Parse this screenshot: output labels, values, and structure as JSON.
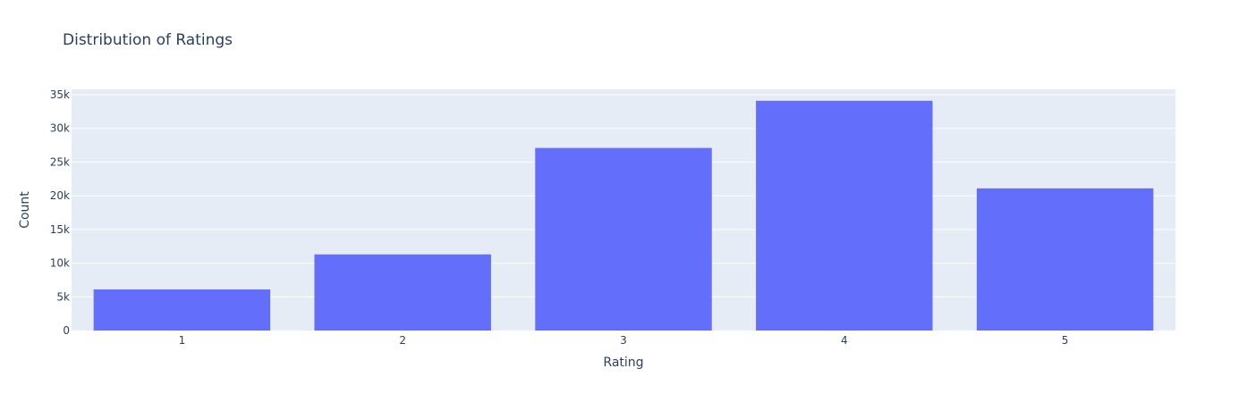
{
  "chart_data": {
    "type": "bar",
    "title": "Distribution of Ratings",
    "xlabel": "Rating",
    "ylabel": "Count",
    "categories": [
      "1",
      "2",
      "3",
      "4",
      "5"
    ],
    "values": [
      6100,
      11300,
      27100,
      34100,
      21100
    ],
    "ylim": [
      0,
      35800
    ],
    "yticks": [
      0,
      5000,
      10000,
      15000,
      20000,
      25000,
      30000,
      35000
    ],
    "ytick_labels": [
      "0",
      "5k",
      "10k",
      "15k",
      "20k",
      "25k",
      "30k",
      "35k"
    ],
    "grid": true,
    "legend": "none",
    "colors": {
      "bar": "#636efa",
      "plot_background": "#e5ecf6",
      "grid": "#ffffff",
      "text": "#2a3f5f"
    }
  }
}
